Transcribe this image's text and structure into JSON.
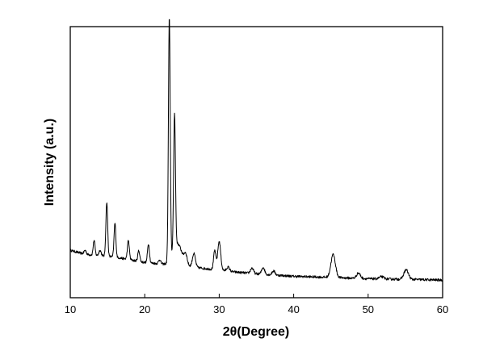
{
  "chart_data": {
    "type": "line",
    "xlabel": "2θ(Degree)",
    "ylabel": "Intensity (a.u.)",
    "xlim": [
      10,
      60
    ],
    "ylim": [
      0,
      100
    ],
    "x_ticks": [
      "10",
      "20",
      "30",
      "40",
      "50",
      "60"
    ],
    "y_ticks_shown": false,
    "grid": false,
    "legend": "none",
    "line_color": "#000000",
    "baseline": [
      [
        10,
        17.5
      ],
      [
        12,
        16.0
      ],
      [
        14,
        15.5
      ],
      [
        16,
        15.0
      ],
      [
        18,
        14.0
      ],
      [
        20,
        13.0
      ],
      [
        22,
        12.5
      ],
      [
        24,
        12.0
      ],
      [
        26,
        11.5
      ],
      [
        28,
        10.8
      ],
      [
        30,
        10.2
      ],
      [
        32,
        9.5
      ],
      [
        35,
        8.8
      ],
      [
        40,
        7.9
      ],
      [
        45,
        7.5
      ],
      [
        50,
        7.0
      ],
      [
        55,
        6.8
      ],
      [
        60,
        6.5
      ]
    ],
    "peaks": [
      {
        "x": 12.0,
        "height": 1.5,
        "width": 0.15
      },
      {
        "x": 13.2,
        "height": 5.5,
        "width": 0.12
      },
      {
        "x": 14.0,
        "height": 2.0,
        "width": 0.15
      },
      {
        "x": 14.9,
        "height": 20.0,
        "width": 0.12
      },
      {
        "x": 16.0,
        "height": 12.5,
        "width": 0.12
      },
      {
        "x": 17.8,
        "height": 7.0,
        "width": 0.13
      },
      {
        "x": 19.2,
        "height": 4.0,
        "width": 0.13
      },
      {
        "x": 20.5,
        "height": 7.0,
        "width": 0.13
      },
      {
        "x": 22.0,
        "height": 1.5,
        "width": 0.15
      },
      {
        "x": 23.3,
        "height": 90.0,
        "width": 0.12
      },
      {
        "x": 24.0,
        "height": 50.0,
        "width": 0.12
      },
      {
        "x": 24.4,
        "height": 8.0,
        "width": 0.6
      },
      {
        "x": 25.5,
        "height": 3.5,
        "width": 0.2
      },
      {
        "x": 26.6,
        "height": 5.0,
        "width": 0.2
      },
      {
        "x": 29.4,
        "height": 7.0,
        "width": 0.15
      },
      {
        "x": 30.0,
        "height": 10.5,
        "width": 0.2
      },
      {
        "x": 31.2,
        "height": 1.5,
        "width": 0.2
      },
      {
        "x": 34.4,
        "height": 2.0,
        "width": 0.2
      },
      {
        "x": 35.9,
        "height": 2.5,
        "width": 0.2
      },
      {
        "x": 37.3,
        "height": 1.5,
        "width": 0.2
      },
      {
        "x": 45.3,
        "height": 8.5,
        "width": 0.3
      },
      {
        "x": 48.7,
        "height": 2.0,
        "width": 0.25
      },
      {
        "x": 51.8,
        "height": 0.8,
        "width": 0.3
      },
      {
        "x": 55.1,
        "height": 3.5,
        "width": 0.3
      }
    ]
  }
}
